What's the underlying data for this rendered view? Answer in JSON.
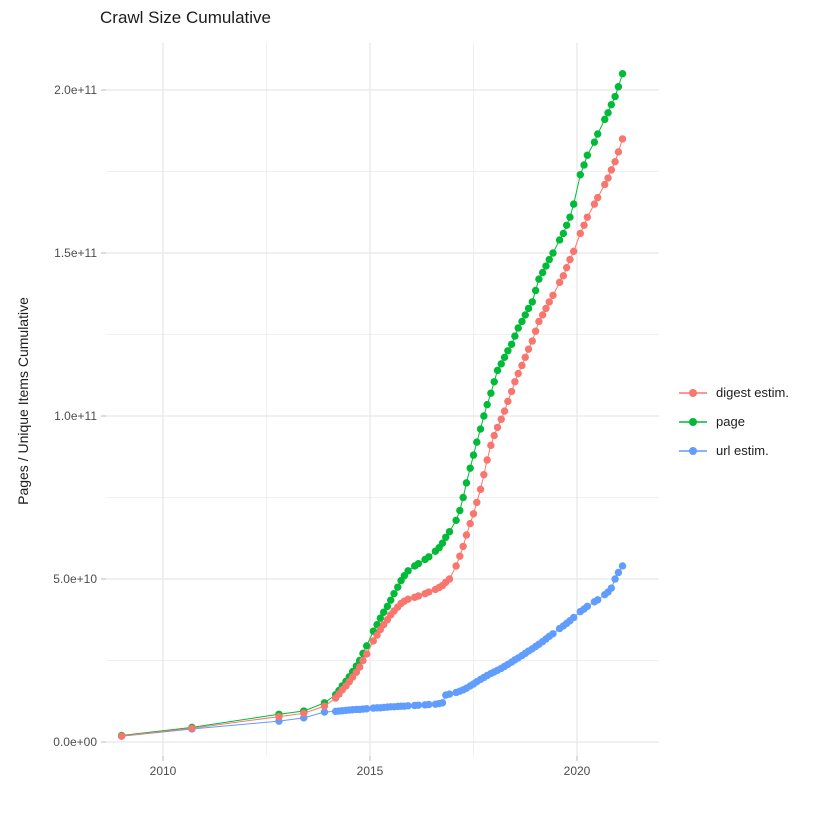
{
  "chart": {
    "title": "Crawl Size Cumulative",
    "ylabel": "Pages / Unique Items Cumulative",
    "xlabel": ""
  },
  "chart_data": {
    "type": "line",
    "title": "Crawl Size Cumulative",
    "xlabel": "",
    "ylabel": "Pages / Unique Items Cumulative",
    "legend_position": "right",
    "grid": "on",
    "y_unit": "values in 1e10 pages",
    "x_domain": [
      2008.62,
      2021.98
    ],
    "y_domain_e10": [
      -0.43,
      21.44
    ],
    "x_ticks": [
      {
        "v": 2010,
        "label": "2010"
      },
      {
        "v": 2015,
        "label": "2015"
      },
      {
        "v": 2020,
        "label": "2020"
      }
    ],
    "x_minor": [
      2012.5,
      2017.5
    ],
    "y_ticks": [
      {
        "v": 0,
        "label": "0.0e+00"
      },
      {
        "v": 5,
        "label": "5.0e+10"
      },
      {
        "v": 10,
        "label": "1.0e+11"
      },
      {
        "v": 15,
        "label": "1.5e+11"
      },
      {
        "v": 20,
        "label": "2.0e+11"
      }
    ],
    "y_minor": [
      2.5,
      7.5,
      12.5,
      17.5
    ],
    "series": [
      {
        "name": "digest estim.",
        "color": "#F8766D",
        "points": [
          [
            2009.0,
            0.18
          ],
          [
            2010.7,
            0.42
          ],
          [
            2012.8,
            0.78
          ],
          [
            2013.4,
            0.88
          ],
          [
            2013.9,
            1.1
          ],
          [
            2014.17,
            1.35
          ],
          [
            2014.25,
            1.47
          ],
          [
            2014.33,
            1.6
          ],
          [
            2014.42,
            1.72
          ],
          [
            2014.5,
            1.85
          ],
          [
            2014.58,
            1.99
          ],
          [
            2014.67,
            2.14
          ],
          [
            2014.75,
            2.3
          ],
          [
            2014.83,
            2.5
          ],
          [
            2014.92,
            2.7
          ],
          [
            2015.08,
            3.1
          ],
          [
            2015.17,
            3.28
          ],
          [
            2015.25,
            3.45
          ],
          [
            2015.33,
            3.6
          ],
          [
            2015.42,
            3.75
          ],
          [
            2015.5,
            3.9
          ],
          [
            2015.58,
            4.02
          ],
          [
            2015.67,
            4.14
          ],
          [
            2015.75,
            4.25
          ],
          [
            2015.83,
            4.32
          ],
          [
            2015.92,
            4.38
          ],
          [
            2016.08,
            4.44
          ],
          [
            2016.17,
            4.48
          ],
          [
            2016.33,
            4.55
          ],
          [
            2016.42,
            4.6
          ],
          [
            2016.58,
            4.68
          ],
          [
            2016.67,
            4.74
          ],
          [
            2016.75,
            4.8
          ],
          [
            2016.83,
            4.9
          ],
          [
            2016.92,
            5.0
          ],
          [
            2017.08,
            5.4
          ],
          [
            2017.17,
            5.7
          ],
          [
            2017.25,
            6.0
          ],
          [
            2017.33,
            6.35
          ],
          [
            2017.42,
            6.7
          ],
          [
            2017.5,
            7.0
          ],
          [
            2017.58,
            7.35
          ],
          [
            2017.67,
            7.75
          ],
          [
            2017.75,
            8.2
          ],
          [
            2017.83,
            8.65
          ],
          [
            2017.92,
            9.1
          ],
          [
            2018.0,
            9.4
          ],
          [
            2018.08,
            9.65
          ],
          [
            2018.17,
            9.9
          ],
          [
            2018.25,
            10.15
          ],
          [
            2018.33,
            10.45
          ],
          [
            2018.42,
            10.75
          ],
          [
            2018.5,
            11.05
          ],
          [
            2018.58,
            11.3
          ],
          [
            2018.67,
            11.55
          ],
          [
            2018.75,
            11.8
          ],
          [
            2018.83,
            12.05
          ],
          [
            2018.92,
            12.3
          ],
          [
            2019.0,
            12.6
          ],
          [
            2019.08,
            12.9
          ],
          [
            2019.17,
            13.1
          ],
          [
            2019.25,
            13.3
          ],
          [
            2019.33,
            13.5
          ],
          [
            2019.42,
            13.7
          ],
          [
            2019.58,
            14.1
          ],
          [
            2019.67,
            14.3
          ],
          [
            2019.75,
            14.55
          ],
          [
            2019.83,
            14.8
          ],
          [
            2019.92,
            15.05
          ],
          [
            2020.08,
            15.6
          ],
          [
            2020.17,
            15.85
          ],
          [
            2020.25,
            16.1
          ],
          [
            2020.42,
            16.5
          ],
          [
            2020.5,
            16.7
          ],
          [
            2020.67,
            17.1
          ],
          [
            2020.75,
            17.3
          ],
          [
            2020.83,
            17.55
          ],
          [
            2020.92,
            17.8
          ],
          [
            2021.0,
            18.1
          ],
          [
            2021.1,
            18.5
          ]
        ]
      },
      {
        "name": "page",
        "color": "#00BA38",
        "points": [
          [
            2009.0,
            0.2
          ],
          [
            2010.7,
            0.45
          ],
          [
            2012.8,
            0.85
          ],
          [
            2013.4,
            0.95
          ],
          [
            2013.9,
            1.2
          ],
          [
            2014.17,
            1.45
          ],
          [
            2014.25,
            1.58
          ],
          [
            2014.33,
            1.72
          ],
          [
            2014.42,
            1.86
          ],
          [
            2014.5,
            2.0
          ],
          [
            2014.58,
            2.16
          ],
          [
            2014.67,
            2.33
          ],
          [
            2014.75,
            2.5
          ],
          [
            2014.83,
            2.72
          ],
          [
            2014.92,
            2.95
          ],
          [
            2015.08,
            3.4
          ],
          [
            2015.17,
            3.6
          ],
          [
            2015.25,
            3.8
          ],
          [
            2015.33,
            3.98
          ],
          [
            2015.42,
            4.16
          ],
          [
            2015.5,
            4.35
          ],
          [
            2015.58,
            4.55
          ],
          [
            2015.67,
            4.75
          ],
          [
            2015.75,
            4.95
          ],
          [
            2015.83,
            5.1
          ],
          [
            2015.92,
            5.25
          ],
          [
            2016.08,
            5.4
          ],
          [
            2016.17,
            5.47
          ],
          [
            2016.33,
            5.6
          ],
          [
            2016.42,
            5.68
          ],
          [
            2016.58,
            5.85
          ],
          [
            2016.67,
            5.96
          ],
          [
            2016.75,
            6.1
          ],
          [
            2016.83,
            6.28
          ],
          [
            2016.92,
            6.45
          ],
          [
            2017.08,
            6.8
          ],
          [
            2017.17,
            7.1
          ],
          [
            2017.25,
            7.5
          ],
          [
            2017.33,
            7.95
          ],
          [
            2017.42,
            8.4
          ],
          [
            2017.5,
            8.8
          ],
          [
            2017.58,
            9.2
          ],
          [
            2017.67,
            9.6
          ],
          [
            2017.75,
            10.0
          ],
          [
            2017.83,
            10.35
          ],
          [
            2017.92,
            10.7
          ],
          [
            2018.0,
            11.05
          ],
          [
            2018.08,
            11.4
          ],
          [
            2018.17,
            11.6
          ],
          [
            2018.25,
            11.8
          ],
          [
            2018.33,
            12.0
          ],
          [
            2018.42,
            12.2
          ],
          [
            2018.5,
            12.45
          ],
          [
            2018.58,
            12.7
          ],
          [
            2018.67,
            12.9
          ],
          [
            2018.75,
            13.1
          ],
          [
            2018.83,
            13.3
          ],
          [
            2018.92,
            13.5
          ],
          [
            2019.0,
            13.85
          ],
          [
            2019.08,
            14.2
          ],
          [
            2019.17,
            14.4
          ],
          [
            2019.25,
            14.6
          ],
          [
            2019.33,
            14.8
          ],
          [
            2019.42,
            15.0
          ],
          [
            2019.58,
            15.4
          ],
          [
            2019.67,
            15.6
          ],
          [
            2019.75,
            15.85
          ],
          [
            2019.83,
            16.1
          ],
          [
            2019.92,
            16.5
          ],
          [
            2020.08,
            17.4
          ],
          [
            2020.17,
            17.7
          ],
          [
            2020.25,
            18.0
          ],
          [
            2020.42,
            18.4
          ],
          [
            2020.5,
            18.65
          ],
          [
            2020.67,
            19.1
          ],
          [
            2020.75,
            19.3
          ],
          [
            2020.83,
            19.55
          ],
          [
            2020.92,
            19.8
          ],
          [
            2021.0,
            20.1
          ],
          [
            2021.1,
            20.5
          ]
        ]
      },
      {
        "name": "url estim.",
        "color": "#619CFF",
        "points": [
          [
            2009.0,
            0.18
          ],
          [
            2010.7,
            0.4
          ],
          [
            2012.8,
            0.64
          ],
          [
            2013.4,
            0.74
          ],
          [
            2013.9,
            0.92
          ],
          [
            2014.17,
            0.94
          ],
          [
            2014.25,
            0.95
          ],
          [
            2014.33,
            0.96
          ],
          [
            2014.42,
            0.97
          ],
          [
            2014.5,
            0.98
          ],
          [
            2014.58,
            0.99
          ],
          [
            2014.67,
            1.0
          ],
          [
            2014.75,
            1.0
          ],
          [
            2014.83,
            1.01
          ],
          [
            2014.92,
            1.02
          ],
          [
            2015.08,
            1.04
          ],
          [
            2015.17,
            1.05
          ],
          [
            2015.25,
            1.05
          ],
          [
            2015.33,
            1.06
          ],
          [
            2015.42,
            1.07
          ],
          [
            2015.5,
            1.08
          ],
          [
            2015.58,
            1.08
          ],
          [
            2015.67,
            1.09
          ],
          [
            2015.75,
            1.1
          ],
          [
            2015.83,
            1.1
          ],
          [
            2015.92,
            1.11
          ],
          [
            2016.08,
            1.12
          ],
          [
            2016.17,
            1.13
          ],
          [
            2016.33,
            1.14
          ],
          [
            2016.42,
            1.15
          ],
          [
            2016.58,
            1.16
          ],
          [
            2016.67,
            1.18
          ],
          [
            2016.75,
            1.2
          ],
          [
            2016.83,
            1.44
          ],
          [
            2016.92,
            1.47
          ],
          [
            2017.08,
            1.52
          ],
          [
            2017.17,
            1.56
          ],
          [
            2017.25,
            1.6
          ],
          [
            2017.33,
            1.65
          ],
          [
            2017.42,
            1.72
          ],
          [
            2017.5,
            1.78
          ],
          [
            2017.58,
            1.85
          ],
          [
            2017.67,
            1.92
          ],
          [
            2017.75,
            1.98
          ],
          [
            2017.83,
            2.04
          ],
          [
            2017.92,
            2.1
          ],
          [
            2018.0,
            2.15
          ],
          [
            2018.08,
            2.2
          ],
          [
            2018.17,
            2.26
          ],
          [
            2018.25,
            2.32
          ],
          [
            2018.33,
            2.38
          ],
          [
            2018.42,
            2.45
          ],
          [
            2018.5,
            2.52
          ],
          [
            2018.58,
            2.58
          ],
          [
            2018.67,
            2.65
          ],
          [
            2018.75,
            2.72
          ],
          [
            2018.83,
            2.79
          ],
          [
            2018.92,
            2.86
          ],
          [
            2019.0,
            2.93
          ],
          [
            2019.08,
            3.0
          ],
          [
            2019.17,
            3.08
          ],
          [
            2019.25,
            3.16
          ],
          [
            2019.33,
            3.24
          ],
          [
            2019.42,
            3.32
          ],
          [
            2019.58,
            3.48
          ],
          [
            2019.67,
            3.56
          ],
          [
            2019.75,
            3.64
          ],
          [
            2019.83,
            3.72
          ],
          [
            2019.92,
            3.82
          ],
          [
            2020.08,
            4.0
          ],
          [
            2020.17,
            4.08
          ],
          [
            2020.25,
            4.16
          ],
          [
            2020.42,
            4.3
          ],
          [
            2020.5,
            4.36
          ],
          [
            2020.67,
            4.52
          ],
          [
            2020.75,
            4.6
          ],
          [
            2020.83,
            4.72
          ],
          [
            2020.92,
            5.0
          ],
          [
            2021.0,
            5.2
          ],
          [
            2021.1,
            5.4
          ]
        ]
      }
    ]
  }
}
